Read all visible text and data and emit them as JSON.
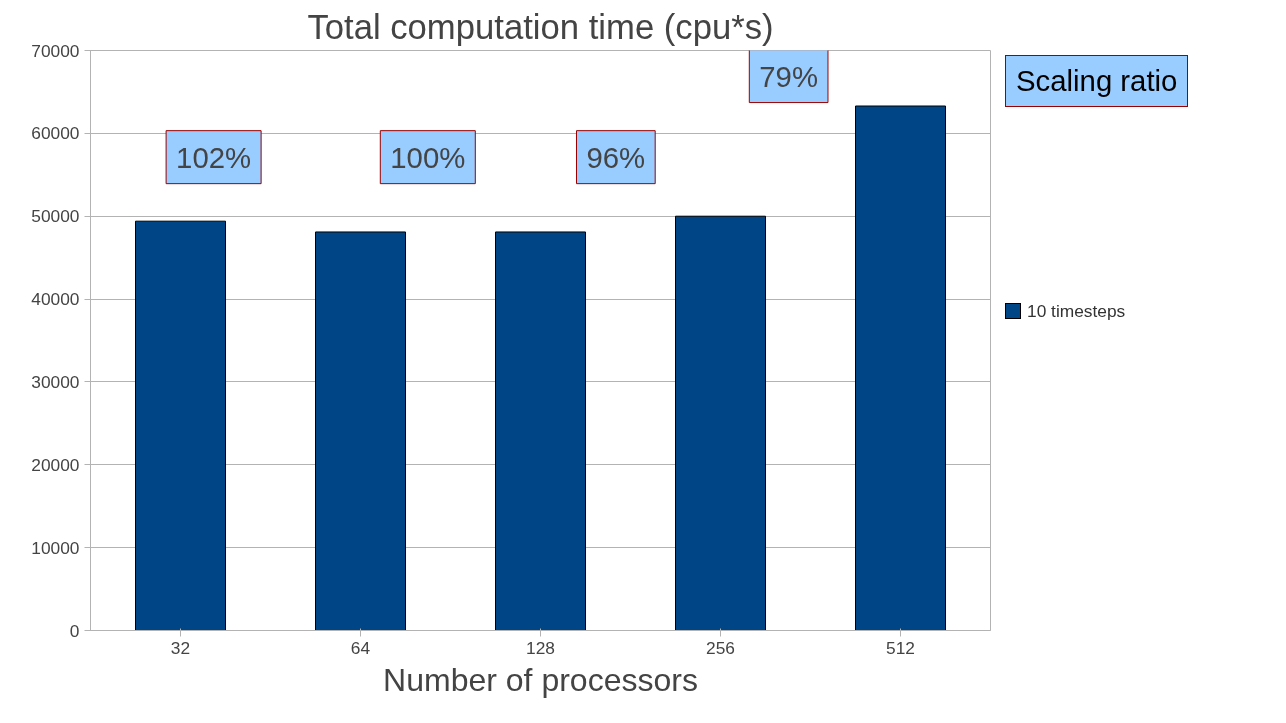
{
  "chart_data": {
    "type": "bar",
    "title": "Total computation time (cpu*s)",
    "xlabel": "Number of processors",
    "categories": [
      "32",
      "64",
      "128",
      "256",
      "512"
    ],
    "series": [
      {
        "name": "10 timesteps",
        "color": "#004586",
        "values": [
          49400,
          48100,
          48100,
          50000,
          63300
        ]
      }
    ],
    "ylim": [
      0,
      70000
    ],
    "yticks": [
      0,
      10000,
      20000,
      30000,
      40000,
      50000,
      60000,
      70000
    ],
    "grid": "y",
    "legend": "right",
    "annotations": [
      "102%",
      "100%",
      "96%",
      "79%",
      "Scaling ratio"
    ]
  }
}
